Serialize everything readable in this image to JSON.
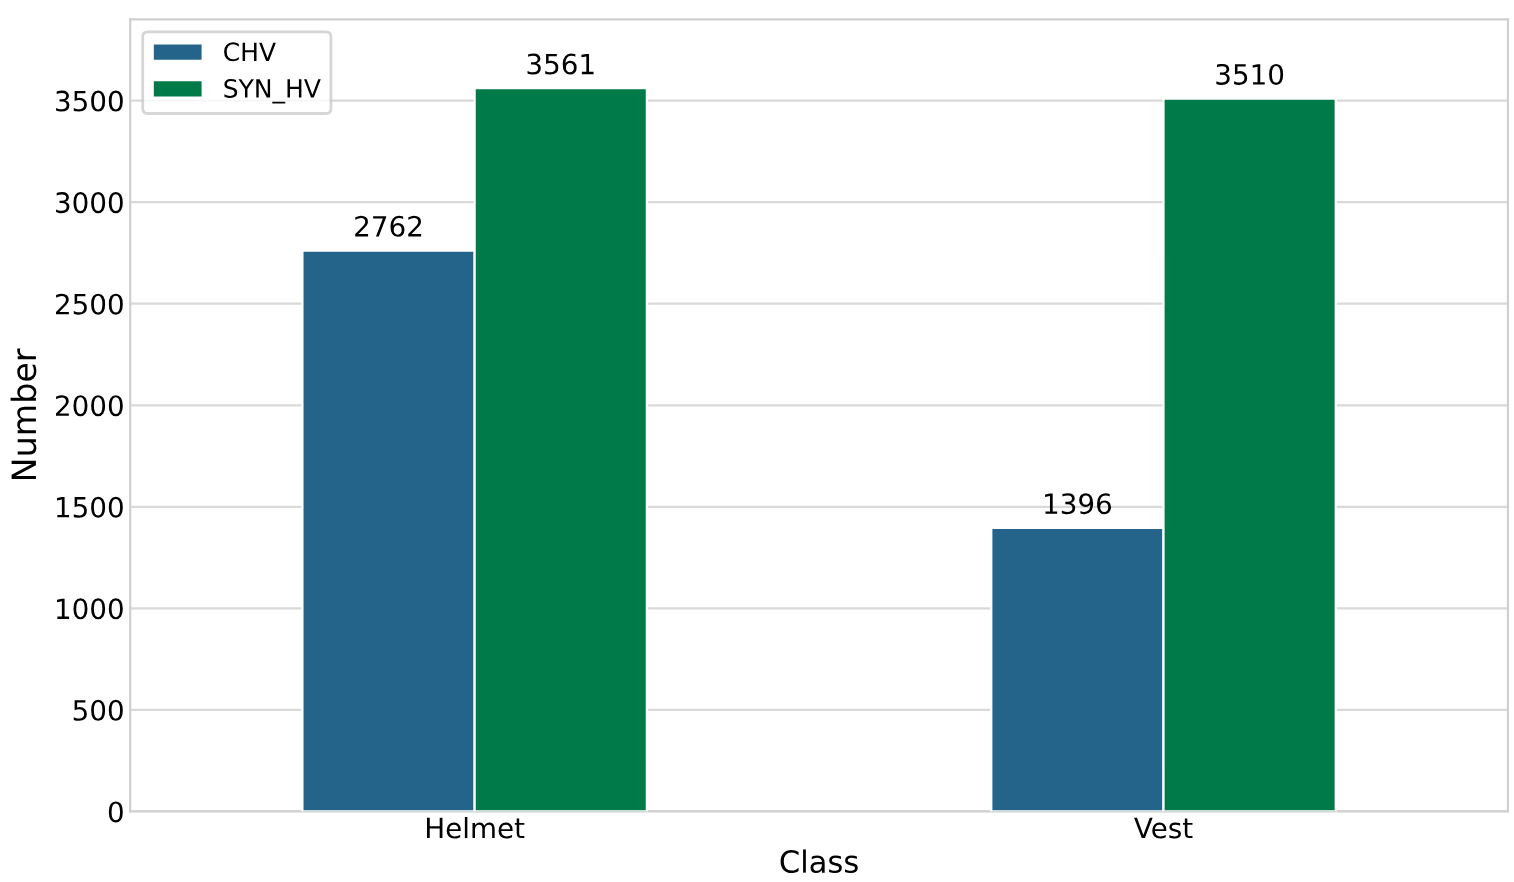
{
  "chart_data": {
    "type": "bar",
    "xlabel": "Class",
    "ylabel": "Number",
    "categories": [
      "Helmet",
      "Vest"
    ],
    "series": [
      {
        "name": "CHV",
        "color": "#24648a",
        "values": [
          2762,
          1396
        ]
      },
      {
        "name": "SYN_HV",
        "color": "#007a48",
        "values": [
          3561,
          3510
        ]
      }
    ],
    "ylim": [
      0,
      3900
    ],
    "yticks": [
      0,
      500,
      1000,
      1500,
      2000,
      2500,
      3000,
      3500
    ],
    "grid": "y",
    "legend": "top left",
    "data_labels": true
  }
}
